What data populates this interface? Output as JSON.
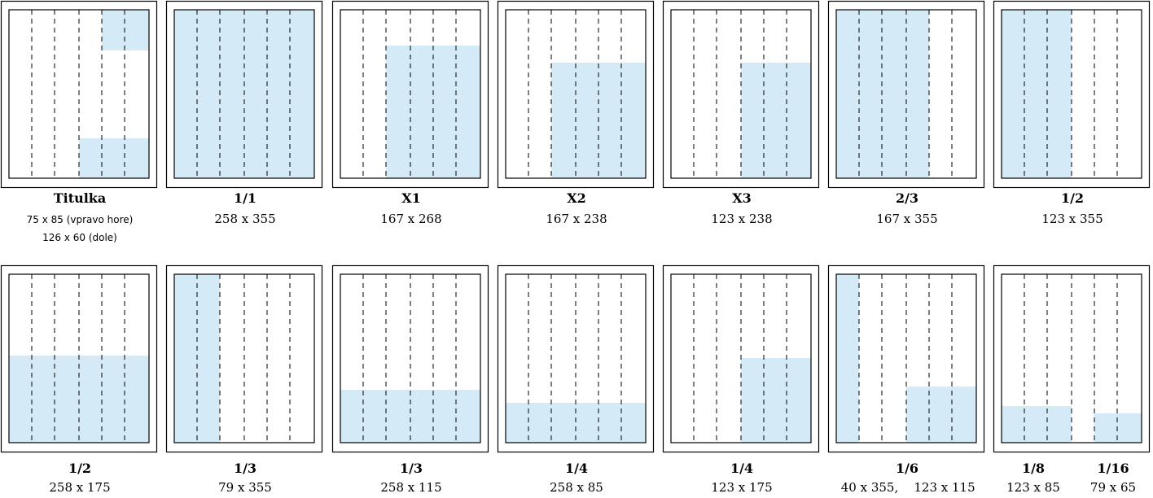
{
  "fill_color": "#d5eaf7",
  "stroke_color": "#000000",
  "panels": [
    {
      "id": "titulka",
      "title": "Titulka",
      "dims": [
        "75 x 85 (vpravo hore)",
        "126 x 60 (dole)"
      ]
    },
    {
      "id": "full-page",
      "title": "1/1",
      "dims": [
        "258 x 355"
      ]
    },
    {
      "id": "x1",
      "title": "X1",
      "dims": [
        "167 x 268"
      ]
    },
    {
      "id": "x2",
      "title": "X2",
      "dims": [
        "167 x 238"
      ]
    },
    {
      "id": "x3",
      "title": "X3",
      "dims": [
        "123 x 238"
      ]
    },
    {
      "id": "two-thirds",
      "title": "2/3",
      "dims": [
        "167 x 355"
      ]
    },
    {
      "id": "half-vertical",
      "title": "1/2",
      "dims": [
        "123 x 355"
      ]
    },
    {
      "id": "half-horizontal",
      "title": "1/2",
      "dims": [
        "258 x 175"
      ]
    },
    {
      "id": "third-vertical",
      "title": "1/3",
      "dims": [
        "79 x 355"
      ]
    },
    {
      "id": "third-horizontal",
      "title": "1/3",
      "dims": [
        "258 x 115"
      ]
    },
    {
      "id": "quarter-horizontal",
      "title": "1/4",
      "dims": [
        "258 x 85"
      ]
    },
    {
      "id": "quarter-block",
      "title": "1/4",
      "dims": [
        "123 x 175"
      ]
    },
    {
      "id": "sixth",
      "title": "1/6",
      "dims": [
        "40 x 355,",
        "123 x 115"
      ]
    },
    {
      "id": "eighth",
      "title": "1/8",
      "dims": [
        "123 x 85"
      ]
    },
    {
      "id": "sixteenth",
      "title": "1/16",
      "dims": [
        "79 x 65"
      ]
    }
  ]
}
